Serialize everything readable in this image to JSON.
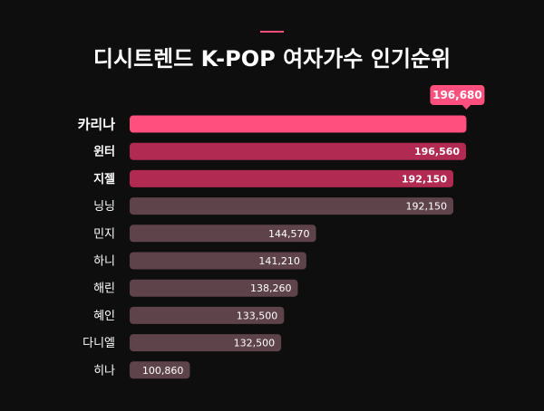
{
  "chart_data": {
    "type": "bar",
    "orientation": "horizontal",
    "title": "디시트렌드 K-POP 여자가수 인기순위",
    "categories": [
      "카리나",
      "윈터",
      "지젤",
      "닝닝",
      "민지",
      "하니",
      "해린",
      "혜인",
      "다니엘",
      "히나"
    ],
    "values": [
      196680,
      196560,
      192150,
      192150,
      144570,
      141210,
      138260,
      133500,
      132500,
      100860
    ],
    "value_labels": [
      "196,680",
      "196,560",
      "192,150",
      "192,150",
      "144,570",
      "141,210",
      "138,260",
      "133,500",
      "132,500",
      "100,860"
    ],
    "colors": [
      "#ff4f7e",
      "#b02a52",
      "#b02a52",
      "#5e434b",
      "#5e434b",
      "#5e434b",
      "#5e434b",
      "#5e434b",
      "#5e434b",
      "#5e434b"
    ],
    "xlim": [
      80000,
      200000
    ]
  }
}
